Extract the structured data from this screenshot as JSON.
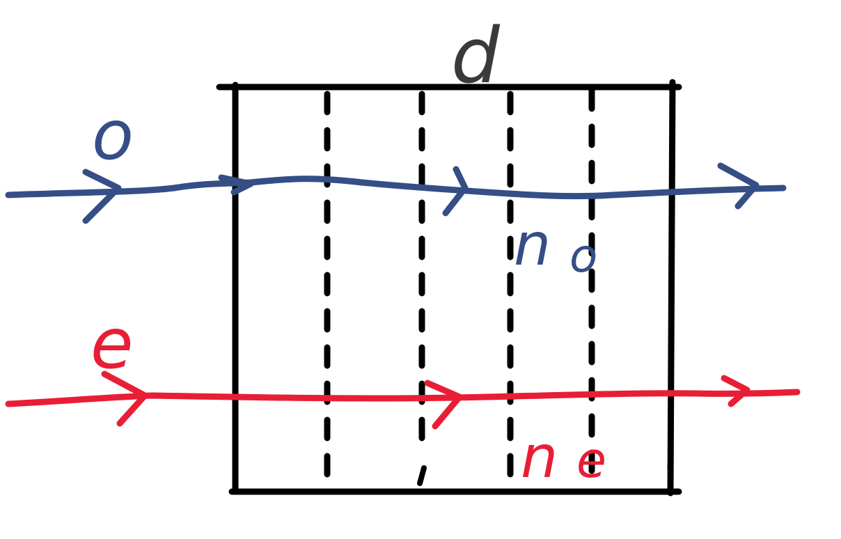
{
  "labels": {
    "thickness": "d",
    "ordinary_ray": "o",
    "extraordinary_ray": "e",
    "ordinary_index_base": "n",
    "ordinary_index_sub": "o",
    "extraordinary_index_base": "n",
    "extraordinary_index_sub": "e"
  },
  "colors": {
    "ordinary": "#354e86",
    "extraordinary": "#e81e36",
    "outline": "#000000",
    "thickness_label": "#3a3a3a"
  }
}
